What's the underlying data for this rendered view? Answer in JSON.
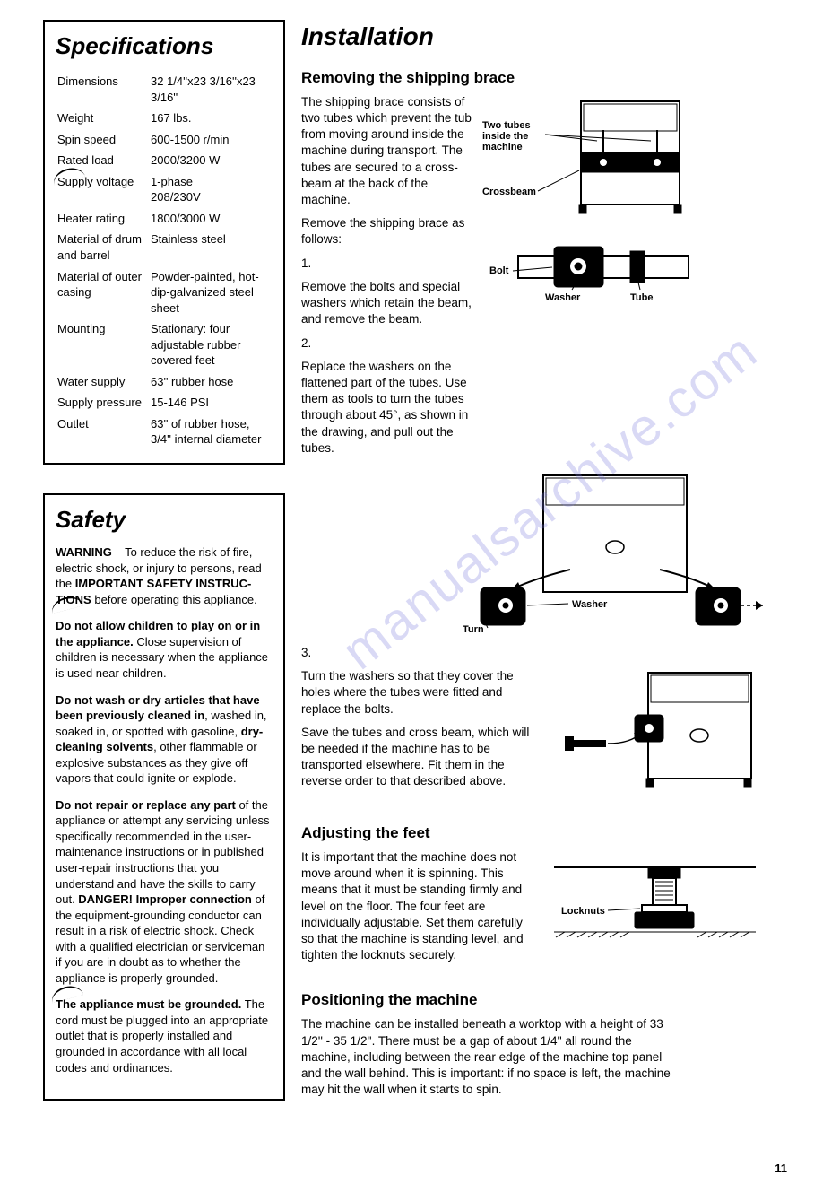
{
  "page_number": "11",
  "watermark": "manualsarchive.com",
  "specs": {
    "title": "Specifications",
    "rows": [
      {
        "k": "Dimensions",
        "v": "32 1/4''x23 3/16''x23 3/16''"
      },
      {
        "k": "Weight",
        "v": "167 lbs."
      },
      {
        "k": "Spin speed",
        "v": "600-1500 r/min"
      },
      {
        "k": "Rated load",
        "v": "2000/3200 W"
      },
      {
        "k": "Supply voltage",
        "v": "1-phase\n208/230V"
      },
      {
        "k": "Heater rating",
        "v": "1800/3000 W"
      },
      {
        "k": "Material of drum and barrel",
        "v": "Stainless steel"
      },
      {
        "k": "Material of outer casing",
        "v": "Powder-painted, hot-dip-galvanized steel sheet"
      },
      {
        "k": "Mounting",
        "v": "Stationary: four adjustable rubber covered feet"
      },
      {
        "k": "Water supply",
        "v": "63'' rubber hose"
      },
      {
        "k": "Supply pressure",
        "v": "15-146 PSI"
      },
      {
        "k": "Outlet",
        "v": "63'' of rubber hose, 3/4'' internal diameter"
      }
    ]
  },
  "safety": {
    "title": "Safety",
    "paragraphs": [
      {
        "html": "<b>WARNING</b> – To reduce the risk of fire, electric shock, or injury to persons, read the <b>IMPORTANT SAFETY INSTRUC-<br>TIONS</b> before operating this appliance."
      },
      {
        "html": "<b>Do not allow children to play on or in the appliance.</b> Close supervision of children is necessary when the appliance is used near children."
      },
      {
        "html": "<b>Do not wash or dry articles that have been previously cleaned in</b>, washed in, soaked in, or spotted with gasoline, <b>dry-cleaning solvents</b>, other flammable or explosive substances as they give off vapors that could ignite or explode."
      },
      {
        "html": "<b>Do not repair or replace any part</b> of the appliance or attempt any servicing unless specifically recommended in the user-maintenance instructions or in published user-repair instructions that you understand and have the skills to carry out. <b>DANGER! Improper connection</b> of the equipment-grounding conductor can result in a risk of electric shock. Check with a qualified electrician or serviceman if you are in doubt as to whether the appliance is properly grounded."
      },
      {
        "html": "<b>The appliance must be grounded.</b> The cord must be plugged into an appropriate outlet that is properly installed and grounded in accordance with all local codes and ordinances."
      }
    ]
  },
  "installation": {
    "title": "Installation",
    "removing": {
      "heading": "Removing the shipping brace",
      "intro": "The shipping brace consists of two tubes which prevent the tub from moving around inside the machine during transport. The tubes are secured to a cross-beam at the back of the machine.",
      "lead": "Remove the shipping brace as follows:",
      "step1_num": "1.",
      "step1": "Remove the bolts and special washers which retain the beam, and remove the beam.",
      "step2_num": "2.",
      "step2": "Replace the washers on the flattened part of the tubes. Use them as tools to turn the tubes through about 45°, as shown in the drawing, and pull out the tubes.",
      "step3_num": "3.",
      "step3a": "Turn the washers so that they cover the holes where the tubes were fitted and replace the bolts.",
      "step3b": "Save the tubes and cross beam, which will be needed if the machine has to be transported elsewhere. Fit them in the reverse order to that described above.",
      "labels": {
        "tubes": "Two tubes inside the machine",
        "crossbeam": "Crossbeam",
        "bolt": "Bolt",
        "washer": "Washer",
        "tube": "Tube",
        "turn": "Turn"
      }
    },
    "adjusting": {
      "heading": "Adjusting the feet",
      "text": "It is important that the machine does not move around when it is spinning. This means that it must be standing firmly and level on the floor. The four feet are individually adjustable. Set them carefully so that the machine is standing level, and tighten the locknuts securely.",
      "labels": {
        "locknuts": "Locknuts"
      }
    },
    "positioning": {
      "heading": "Positioning the machine",
      "text": "The machine can be installed beneath a worktop with a height of 33 1/2'' - 35 1/2''. There must be a gap of about 1/4'' all round the machine, including between the rear edge of the machine top panel and the wall behind. This is important: if no space is left, the machine may hit the wall when it starts to spin."
    }
  }
}
